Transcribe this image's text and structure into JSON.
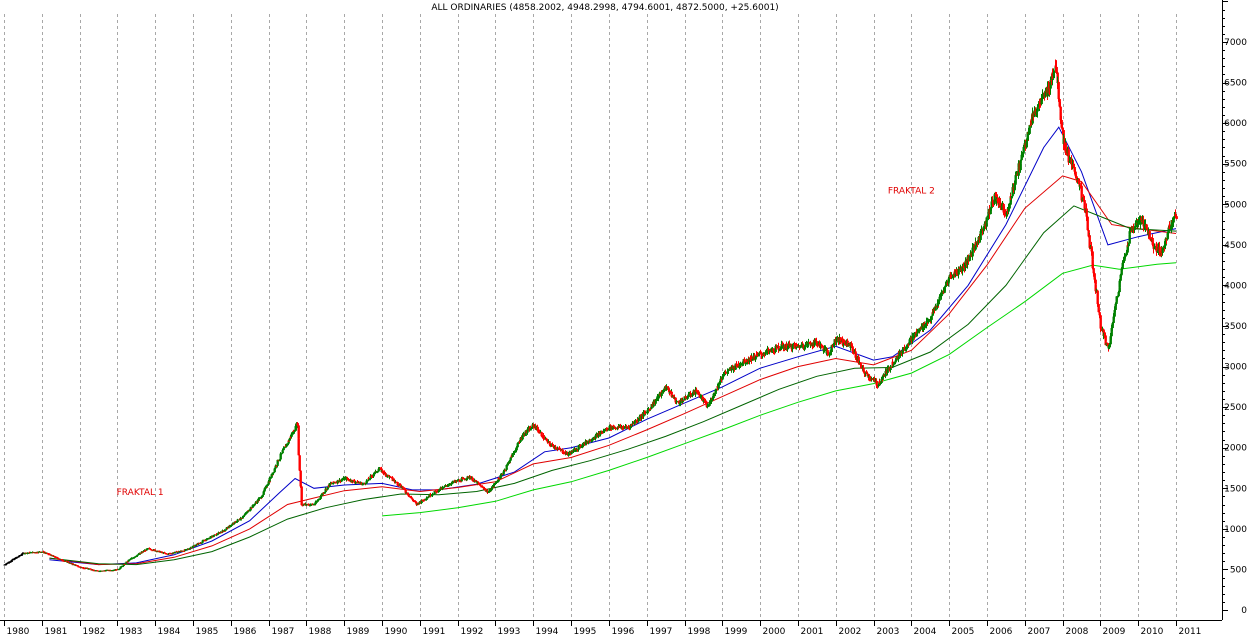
{
  "chart_data": {
    "type": "candlestick",
    "title": "ALL ORDINARIES (4858.2002, 4948.2998, 4794.6001, 4872.5000, +25.6001)",
    "x_tick_labels": [
      "1980",
      "1981",
      "1982",
      "1983",
      "1984",
      "1985",
      "1986",
      "1987",
      "1988",
      "1989",
      "1990",
      "1991",
      "1992",
      "1993",
      "1994",
      "1995",
      "1996",
      "1997",
      "1998",
      "1999",
      "2000",
      "2001",
      "2002",
      "2003",
      "2004",
      "2005",
      "2006",
      "2007",
      "2008",
      "2009",
      "2010",
      "2011"
    ],
    "y_tick_labels": [
      "0",
      "500",
      "1000",
      "1500",
      "2000",
      "2500",
      "3000",
      "3500",
      "4000",
      "4500",
      "5000",
      "5500",
      "6000",
      "6500",
      "7000"
    ],
    "ylim": [
      0,
      7000
    ],
    "xlim": [
      1980,
      2011
    ],
    "grid": "vertical dashed at each year",
    "annotations": [
      {
        "text": "FRAKTAL 1",
        "x": 1983.6,
        "y": 1420
      },
      {
        "text": "FRAKTAL 2",
        "x": 2004.0,
        "y": 5130
      }
    ],
    "colors": {
      "up": "#008000",
      "down": "#ff0000",
      "ma_blue": "#0000c8",
      "ma_red": "#e00000",
      "ma_darkgreen": "#006400",
      "ma_lightgreen": "#00d800",
      "grid": "#a8a8a8",
      "axis": "#000000"
    },
    "price_anchors": [
      [
        1980.0,
        560
      ],
      [
        1980.5,
        700
      ],
      [
        1981.0,
        720
      ],
      [
        1981.5,
        620
      ],
      [
        1982.0,
        530
      ],
      [
        1982.5,
        480
      ],
      [
        1983.0,
        500
      ],
      [
        1983.3,
        620
      ],
      [
        1983.8,
        760
      ],
      [
        1984.3,
        690
      ],
      [
        1984.8,
        740
      ],
      [
        1985.3,
        860
      ],
      [
        1985.8,
        980
      ],
      [
        1986.3,
        1150
      ],
      [
        1986.8,
        1400
      ],
      [
        1987.3,
        1900
      ],
      [
        1987.75,
        2300
      ],
      [
        1987.85,
        1300
      ],
      [
        1988.2,
        1300
      ],
      [
        1988.6,
        1550
      ],
      [
        1989.0,
        1620
      ],
      [
        1989.5,
        1550
      ],
      [
        1989.9,
        1740
      ],
      [
        1990.5,
        1520
      ],
      [
        1990.9,
        1300
      ],
      [
        1991.3,
        1430
      ],
      [
        1991.8,
        1560
      ],
      [
        1992.3,
        1640
      ],
      [
        1992.8,
        1450
      ],
      [
        1993.2,
        1700
      ],
      [
        1993.7,
        2150
      ],
      [
        1994.0,
        2280
      ],
      [
        1994.4,
        2050
      ],
      [
        1994.9,
        1920
      ],
      [
        1995.5,
        2100
      ],
      [
        1996.0,
        2250
      ],
      [
        1996.5,
        2250
      ],
      [
        1997.0,
        2450
      ],
      [
        1997.5,
        2750
      ],
      [
        1997.8,
        2550
      ],
      [
        1998.3,
        2700
      ],
      [
        1998.6,
        2500
      ],
      [
        1999.0,
        2900
      ],
      [
        1999.5,
        3050
      ],
      [
        2000.0,
        3150
      ],
      [
        2000.6,
        3250
      ],
      [
        2001.0,
        3250
      ],
      [
        2001.5,
        3300
      ],
      [
        2001.8,
        3150
      ],
      [
        2002.0,
        3350
      ],
      [
        2002.4,
        3250
      ],
      [
        2002.7,
        2950
      ],
      [
        2003.1,
        2780
      ],
      [
        2003.5,
        3050
      ],
      [
        2004.0,
        3350
      ],
      [
        2004.5,
        3600
      ],
      [
        2005.0,
        4100
      ],
      [
        2005.4,
        4250
      ],
      [
        2005.8,
        4600
      ],
      [
        2006.2,
        5100
      ],
      [
        2006.5,
        4900
      ],
      [
        2006.8,
        5400
      ],
      [
        2007.2,
        6100
      ],
      [
        2007.6,
        6400
      ],
      [
        2007.8,
        6750
      ],
      [
        2008.0,
        5800
      ],
      [
        2008.2,
        5500
      ],
      [
        2008.4,
        5300
      ],
      [
        2008.6,
        4900
      ],
      [
        2008.8,
        4200
      ],
      [
        2009.0,
        3500
      ],
      [
        2009.2,
        3200
      ],
      [
        2009.4,
        3800
      ],
      [
        2009.6,
        4300
      ],
      [
        2009.8,
        4700
      ],
      [
        2010.1,
        4800
      ],
      [
        2010.4,
        4500
      ],
      [
        2010.6,
        4400
      ],
      [
        2010.8,
        4700
      ],
      [
        2011.0,
        4870
      ]
    ],
    "series": [
      {
        "color": "#0000c8",
        "values": [
          [
            1981.2,
            620
          ],
          [
            1982.5,
            560
          ],
          [
            1983.5,
            580
          ],
          [
            1984.5,
            680
          ],
          [
            1985.5,
            850
          ],
          [
            1986.5,
            1100
          ],
          [
            1987.3,
            1450
          ],
          [
            1987.7,
            1620
          ],
          [
            1988.2,
            1500
          ],
          [
            1989.0,
            1540
          ],
          [
            1990.0,
            1560
          ],
          [
            1990.8,
            1480
          ],
          [
            1991.5,
            1480
          ],
          [
            1992.5,
            1550
          ],
          [
            1993.5,
            1700
          ],
          [
            1994.3,
            1950
          ],
          [
            1995.0,
            2000
          ],
          [
            1996.0,
            2120
          ],
          [
            1997.0,
            2350
          ],
          [
            1998.0,
            2550
          ],
          [
            1999.0,
            2750
          ],
          [
            2000.0,
            2980
          ],
          [
            2001.0,
            3120
          ],
          [
            2002.0,
            3250
          ],
          [
            2003.0,
            3080
          ],
          [
            2003.5,
            3120
          ],
          [
            2004.5,
            3450
          ],
          [
            2005.5,
            4000
          ],
          [
            2006.5,
            4750
          ],
          [
            2007.5,
            5700
          ],
          [
            2007.9,
            5950
          ],
          [
            2008.5,
            5400
          ],
          [
            2009.2,
            4500
          ],
          [
            2010.0,
            4600
          ],
          [
            2011.0,
            4700
          ]
        ]
      },
      {
        "color": "#e00000",
        "values": [
          [
            1981.2,
            640
          ],
          [
            1982.5,
            560
          ],
          [
            1983.5,
            570
          ],
          [
            1984.5,
            650
          ],
          [
            1985.5,
            790
          ],
          [
            1986.5,
            1000
          ],
          [
            1987.5,
            1300
          ],
          [
            1988.2,
            1380
          ],
          [
            1989.0,
            1470
          ],
          [
            1990.0,
            1520
          ],
          [
            1991.0,
            1460
          ],
          [
            1992.0,
            1510
          ],
          [
            1993.0,
            1580
          ],
          [
            1994.0,
            1800
          ],
          [
            1995.0,
            1880
          ],
          [
            1996.0,
            2030
          ],
          [
            1997.0,
            2220
          ],
          [
            1998.0,
            2420
          ],
          [
            1999.0,
            2630
          ],
          [
            2000.0,
            2840
          ],
          [
            2001.0,
            3000
          ],
          [
            2002.0,
            3100
          ],
          [
            2003.0,
            3020
          ],
          [
            2004.0,
            3200
          ],
          [
            2005.0,
            3650
          ],
          [
            2006.0,
            4250
          ],
          [
            2007.0,
            4950
          ],
          [
            2008.0,
            5350
          ],
          [
            2008.5,
            5280
          ],
          [
            2009.3,
            4750
          ],
          [
            2010.0,
            4700
          ],
          [
            2011.0,
            4640
          ]
        ]
      },
      {
        "color": "#006400",
        "values": [
          [
            1981.2,
            640
          ],
          [
            1982.5,
            570
          ],
          [
            1983.5,
            560
          ],
          [
            1984.5,
            620
          ],
          [
            1985.5,
            720
          ],
          [
            1986.5,
            900
          ],
          [
            1987.5,
            1120
          ],
          [
            1988.5,
            1260
          ],
          [
            1989.5,
            1360
          ],
          [
            1990.5,
            1430
          ],
          [
            1991.5,
            1420
          ],
          [
            1992.5,
            1460
          ],
          [
            1993.5,
            1560
          ],
          [
            1994.5,
            1720
          ],
          [
            1995.5,
            1840
          ],
          [
            1996.5,
            1980
          ],
          [
            1997.5,
            2140
          ],
          [
            1998.5,
            2320
          ],
          [
            1999.5,
            2520
          ],
          [
            2000.5,
            2720
          ],
          [
            2001.5,
            2880
          ],
          [
            2002.5,
            2980
          ],
          [
            2003.5,
            2990
          ],
          [
            2004.5,
            3180
          ],
          [
            2005.5,
            3520
          ],
          [
            2006.5,
            4000
          ],
          [
            2007.5,
            4650
          ],
          [
            2008.3,
            4980
          ],
          [
            2009.0,
            4850
          ],
          [
            2009.8,
            4700
          ],
          [
            2011.0,
            4670
          ]
        ]
      },
      {
        "color": "#00d800",
        "values": [
          [
            1990.0,
            1160
          ],
          [
            1991.0,
            1200
          ],
          [
            1992.0,
            1260
          ],
          [
            1993.0,
            1340
          ],
          [
            1994.0,
            1480
          ],
          [
            1995.0,
            1580
          ],
          [
            1996.0,
            1720
          ],
          [
            1997.0,
            1880
          ],
          [
            1998.0,
            2050
          ],
          [
            1999.0,
            2220
          ],
          [
            2000.0,
            2400
          ],
          [
            2001.0,
            2560
          ],
          [
            2002.0,
            2700
          ],
          [
            2003.0,
            2790
          ],
          [
            2004.0,
            2920
          ],
          [
            2005.0,
            3150
          ],
          [
            2006.0,
            3480
          ],
          [
            2007.0,
            3800
          ],
          [
            2008.0,
            4150
          ],
          [
            2008.8,
            4250
          ],
          [
            2009.5,
            4200
          ],
          [
            2010.5,
            4260
          ],
          [
            2011.0,
            4280
          ]
        ]
      }
    ]
  }
}
